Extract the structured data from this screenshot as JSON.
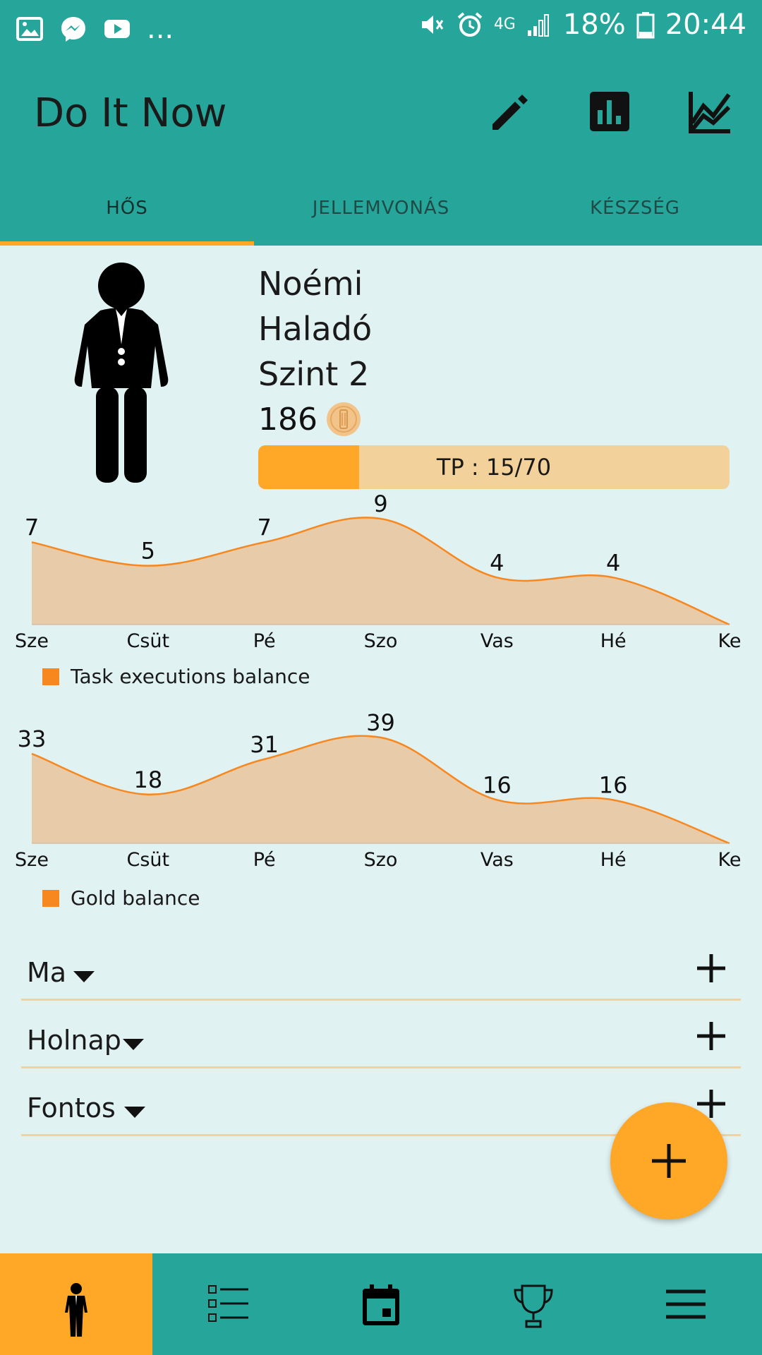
{
  "status_bar": {
    "battery": "18%",
    "time": "20:44",
    "network": "4G",
    "left_icons": [
      "image-icon",
      "messenger-icon",
      "youtube-icon",
      "more-dots-icon"
    ],
    "more": "..."
  },
  "app_bar": {
    "title": "Do It Now",
    "actions": [
      "edit-icon",
      "bar-chart-icon",
      "line-chart-icon"
    ]
  },
  "tabs": [
    {
      "label": "HŐS",
      "active": true
    },
    {
      "label": "JELLEMVONÁS",
      "active": false
    },
    {
      "label": "KÉSZSÉG",
      "active": false
    }
  ],
  "hero": {
    "name": "Noémi",
    "rank": "Haladó",
    "level": "Szint 2",
    "gold": "186",
    "tp_label": "TP : 15/70",
    "tp_current": 15,
    "tp_max": 70
  },
  "colors": {
    "primary": "#26a69a",
    "accent": "#ffa726",
    "chart_fill": "#e8cba9",
    "chart_line": "#f7871f",
    "background": "#e1f2f2"
  },
  "chart_data": [
    {
      "type": "area",
      "categories": [
        "Sze",
        "Csüt",
        "Pé",
        "Szo",
        "Vas",
        "Hé",
        "Ke"
      ],
      "series": [
        {
          "name": "Task executions balance",
          "values": [
            7,
            5,
            7,
            9,
            4,
            4,
            0
          ]
        }
      ],
      "data_labels": [
        "7",
        "5",
        "7",
        "9",
        "4",
        "4",
        ""
      ],
      "ylim": [
        0,
        9
      ],
      "legend": "bottom-left",
      "grid": false
    },
    {
      "type": "area",
      "categories": [
        "Sze",
        "Csüt",
        "Pé",
        "Szo",
        "Vas",
        "Hé",
        "Ke"
      ],
      "series": [
        {
          "name": "Gold balance",
          "values": [
            33,
            18,
            31,
            39,
            16,
            16,
            0
          ]
        }
      ],
      "data_labels": [
        "33",
        "18",
        "31",
        "39",
        "16",
        "16",
        ""
      ],
      "ylim": [
        0,
        39
      ],
      "legend": "bottom-left",
      "grid": false
    }
  ],
  "task_groups": [
    {
      "label": "Ma"
    },
    {
      "label": "Holnap"
    },
    {
      "label": "Fontos"
    }
  ],
  "bottom_nav": [
    {
      "icon": "hero-icon",
      "active": true
    },
    {
      "icon": "task-list-icon",
      "active": false
    },
    {
      "icon": "calendar-icon",
      "active": false
    },
    {
      "icon": "trophy-icon",
      "active": false
    },
    {
      "icon": "menu-icon",
      "active": false
    }
  ]
}
